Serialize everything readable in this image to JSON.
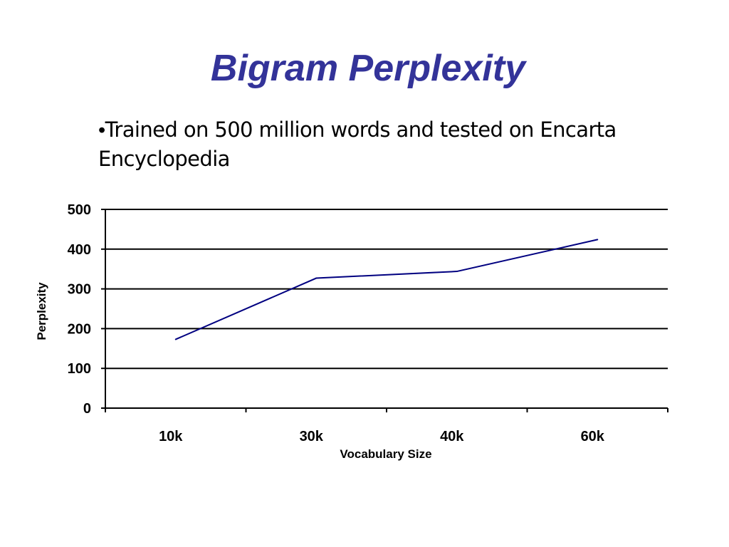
{
  "slide": {
    "title": "Bigram Perplexity",
    "bullet_marker": "•",
    "bullet_text": "Trained on 500 million words and tested on Encarta Encyclopedia"
  },
  "colors": {
    "title": "#333399",
    "series_line": "#000080",
    "grid": "#000000",
    "text": "#000000"
  },
  "chart_data": {
    "type": "line",
    "title": "",
    "xlabel": "Vocabulary Size",
    "ylabel": "Perplexity",
    "categories": [
      "10k",
      "30k",
      "40k",
      "60k"
    ],
    "series": [
      {
        "values": [
          173,
          327,
          344,
          424
        ]
      }
    ],
    "ylim": [
      0,
      500
    ],
    "yticks": [
      0,
      100,
      200,
      300,
      400,
      500
    ],
    "grid": "horizontal",
    "legend": "none"
  }
}
